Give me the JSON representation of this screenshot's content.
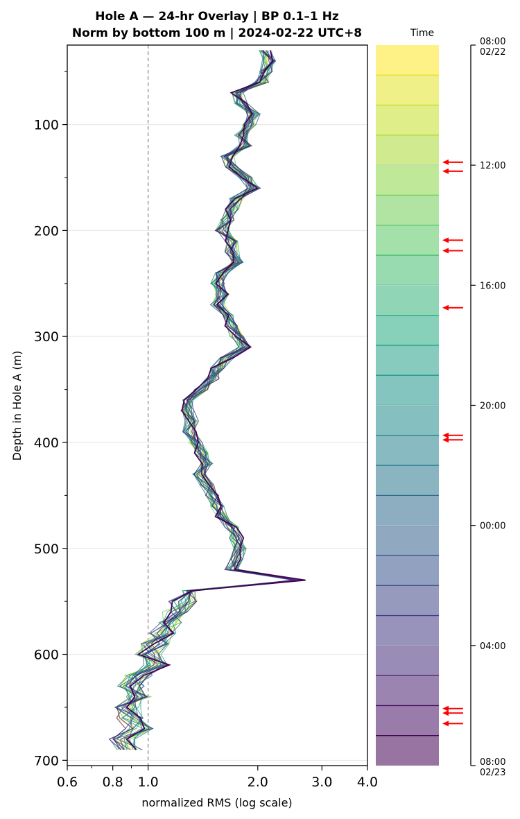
{
  "titles": {
    "line1": "Hole A — 24-hr Overlay  |  BP 0.1–1 Hz",
    "line2": "Norm by bottom 100 m  |  2024-02-22 UTC+8"
  },
  "chart_data": [
    {
      "type": "line",
      "xlabel": "normalized RMS  (log scale)",
      "ylabel": "Depth in Hole A (m)",
      "xscale": "log",
      "xlim": [
        0.6,
        4.0
      ],
      "ylim": [
        705,
        25
      ],
      "x_tick_labels": [
        "0.6",
        "0.8",
        "1.0",
        "2.0",
        "3.0",
        "4.0"
      ],
      "y_tick_labels": [
        "100",
        "200",
        "300",
        "400",
        "500",
        "600",
        "700"
      ],
      "reference_line": {
        "x": 1.0,
        "style": "dashed",
        "color": "#808080"
      },
      "grid": "horizontal",
      "colormap": "viridis (yellow = early, purple = late)",
      "series_count": 24,
      "profile": {
        "depth": [
          30,
          40,
          50,
          60,
          70,
          80,
          90,
          100,
          110,
          120,
          130,
          140,
          150,
          160,
          170,
          180,
          190,
          200,
          210,
          220,
          230,
          240,
          250,
          260,
          270,
          280,
          290,
          300,
          310,
          320,
          330,
          340,
          350,
          360,
          370,
          380,
          390,
          400,
          410,
          420,
          430,
          440,
          450,
          460,
          470,
          480,
          490,
          500,
          510,
          520,
          530,
          540,
          550,
          560,
          570,
          580,
          590,
          600,
          610,
          620,
          630,
          640,
          650,
          660,
          670,
          680,
          690
        ],
        "rms": [
          2.1,
          2.15,
          2.1,
          2.05,
          1.75,
          1.8,
          1.95,
          1.9,
          1.8,
          1.85,
          1.65,
          1.7,
          1.85,
          1.95,
          1.75,
          1.7,
          1.65,
          1.6,
          1.7,
          1.7,
          1.75,
          1.6,
          1.55,
          1.6,
          1.55,
          1.65,
          1.7,
          1.75,
          1.85,
          1.65,
          1.55,
          1.5,
          1.4,
          1.3,
          1.28,
          1.32,
          1.3,
          1.35,
          1.4,
          1.45,
          1.38,
          1.45,
          1.5,
          1.55,
          1.6,
          1.7,
          1.75,
          1.8,
          1.75,
          1.7,
          2.6,
          1.3,
          1.25,
          1.2,
          1.15,
          1.1,
          1.05,
          1.0,
          1.05,
          0.95,
          0.9,
          0.95,
          0.88,
          0.9,
          0.95,
          0.85,
          0.9
        ]
      }
    },
    {
      "type": "heatmap",
      "title": "Time",
      "time_labels": [
        "08:00\n02/22",
        "12:00",
        "16:00",
        "20:00",
        "00:00",
        "04:00",
        "08:00\n02/23"
      ],
      "hours_span": 24,
      "bands": 24,
      "arrow_color": "#ff0000",
      "arrow_hours": [
        3.9,
        4.2,
        6.5,
        6.85,
        8.75,
        13.0,
        13.15,
        22.1,
        22.25,
        22.6
      ]
    }
  ]
}
